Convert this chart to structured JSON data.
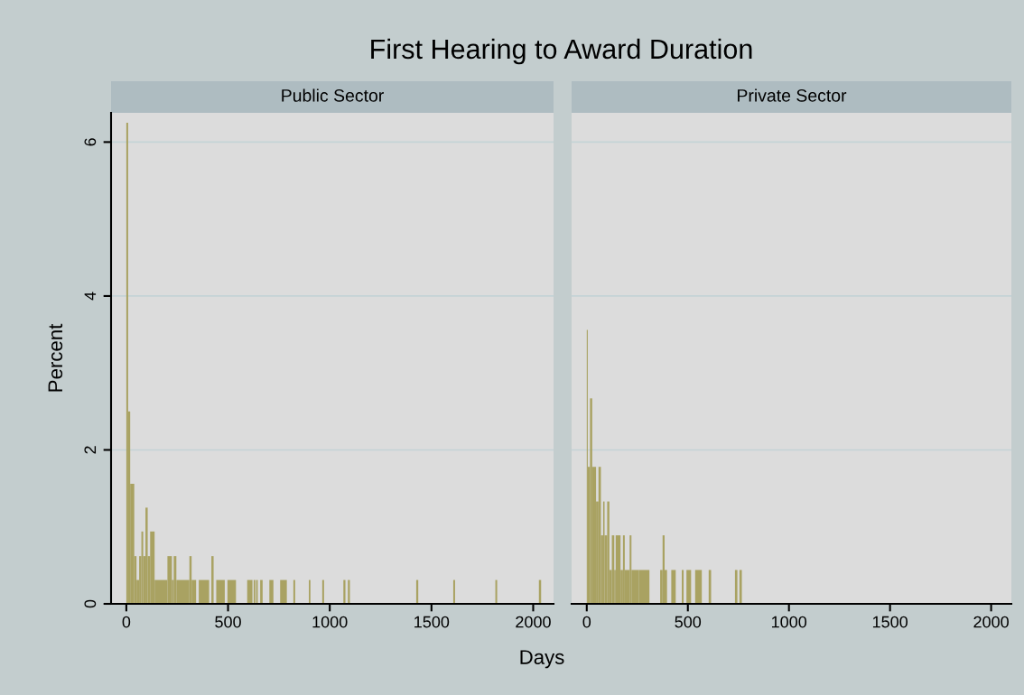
{
  "chart_data": [
    {
      "type": "histogram",
      "title": "First Hearing to Award Duration",
      "subtitle": "Public Sector",
      "xlabel": "Days",
      "ylabel": "Percent",
      "color": "#a9a262",
      "bins": [
        0,
        9,
        19,
        39,
        50,
        63,
        74,
        83,
        94,
        105,
        117,
        139,
        202,
        224,
        233,
        246,
        310,
        321,
        343,
        356,
        407,
        418,
        429,
        442,
        484,
        497,
        539,
        594,
        620,
        626,
        634,
        638,
        646,
        658,
        670,
        703,
        723,
        756,
        789,
        821,
        830,
        897,
        905,
        963,
        972,
        1067,
        1077,
        1089,
        1099,
        1425,
        1435,
        1607,
        1616,
        1814,
        1823,
        2028,
        2039
      ],
      "values": [
        6.25,
        2.5,
        1.56,
        0.62,
        0.31,
        0.62,
        0.94,
        0.62,
        1.25,
        0.62,
        0.94,
        0.31,
        0.62,
        0.31,
        0.62,
        0.31,
        0.62,
        0.31,
        0,
        0.31,
        0,
        0.62,
        0,
        0.31,
        0,
        0.31,
        0,
        0.31,
        0,
        0.31,
        0,
        0.31,
        0,
        0.31,
        0,
        0.31,
        0,
        0.31,
        0,
        0.31,
        0,
        0.31,
        0,
        0.31,
        0,
        0.31,
        0,
        0.31,
        0,
        0.31,
        0,
        0.31,
        0,
        0.31,
        0,
        0.31
      ],
      "xlim": [
        -75,
        2100
      ],
      "xticks": [
        0,
        500,
        1000,
        1500,
        2000
      ],
      "ylim": [
        0,
        6.38
      ],
      "yticks": [
        0,
        2,
        4,
        6
      ],
      "grid": "y"
    },
    {
      "type": "histogram",
      "subtitle": "Private Sector",
      "color": "#a9a262",
      "bins": [
        0,
        5,
        16,
        27,
        46,
        58,
        70,
        81,
        88,
        101,
        112,
        124,
        136,
        143,
        167,
        179,
        188,
        212,
        221,
        257,
        310,
        363,
        375,
        385,
        397,
        418,
        440,
        470,
        479,
        493,
        516,
        536,
        569,
        603,
        615,
        733,
        745,
        755,
        767
      ],
      "values": [
        3.56,
        1.78,
        2.67,
        1.78,
        1.33,
        1.78,
        0.89,
        1.33,
        0.89,
        1.33,
        0.44,
        0.89,
        0.44,
        0.89,
        0.44,
        0.89,
        0.44,
        0.89,
        0.44,
        0.44,
        0,
        0.44,
        0.89,
        0.44,
        0,
        0.44,
        0,
        0.44,
        0,
        0.44,
        0,
        0.44,
        0,
        0.44,
        0,
        0.44,
        0,
        0.44
      ],
      "xlim": [
        -75,
        2100
      ],
      "xticks": [
        0,
        500,
        1000,
        1500,
        2000
      ],
      "ylim": [
        0,
        6.38
      ],
      "yticks": [
        0,
        2,
        4,
        6
      ],
      "grid": "y",
      "tick_labels": "x"
    }
  ]
}
